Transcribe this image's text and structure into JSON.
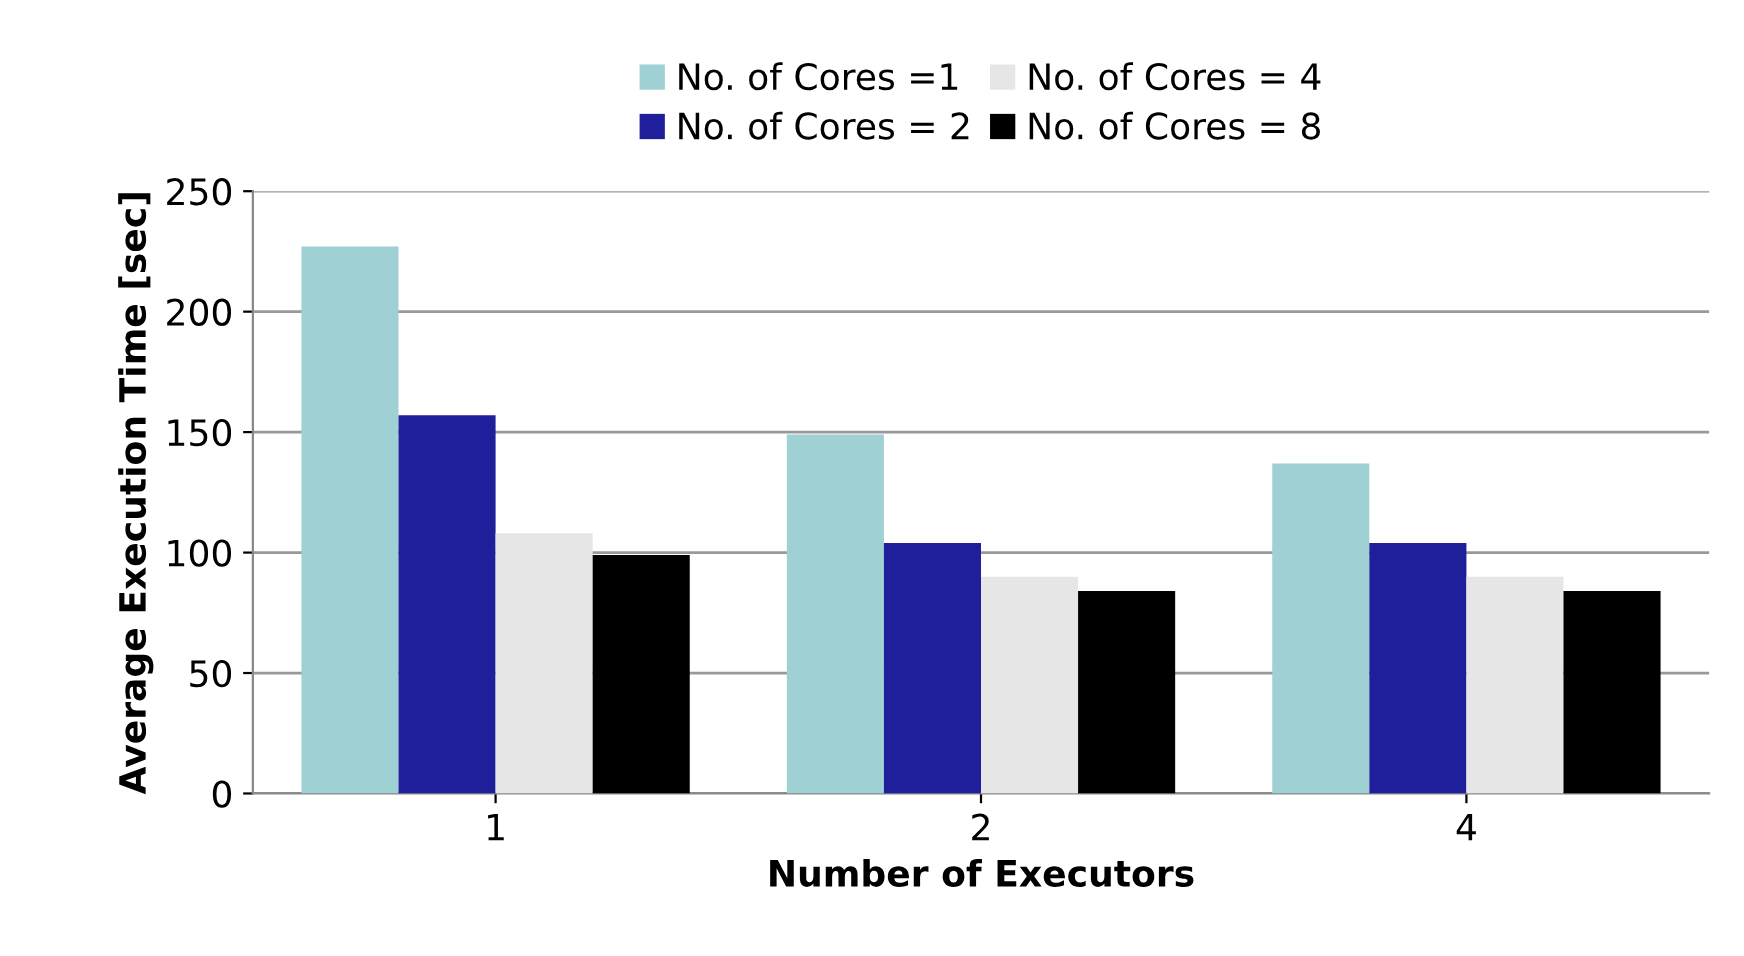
{
  "chart_data": {
    "type": "bar",
    "xlabel": "Number of Executors",
    "ylabel": "Average Execution Time [sec]",
    "categories": [
      "1",
      "2",
      "4"
    ],
    "series": [
      {
        "name": "No. of Cores =1",
        "color": "#9fd0d4",
        "values": [
          227,
          149,
          137
        ]
      },
      {
        "name": "No. of Cores = 2",
        "color": "#1f1f9c",
        "values": [
          157,
          104,
          104
        ]
      },
      {
        "name": "No. of Cores = 4",
        "color": "#e6e6e6",
        "values": [
          108,
          90,
          90
        ]
      },
      {
        "name": "No. of Cores = 8",
        "color": "#000000",
        "values": [
          99,
          84,
          84
        ]
      }
    ],
    "ylim": [
      0,
      250
    ],
    "yticks": [
      0,
      50,
      100,
      150,
      200,
      250
    ],
    "grid": "y",
    "legend": "top"
  }
}
